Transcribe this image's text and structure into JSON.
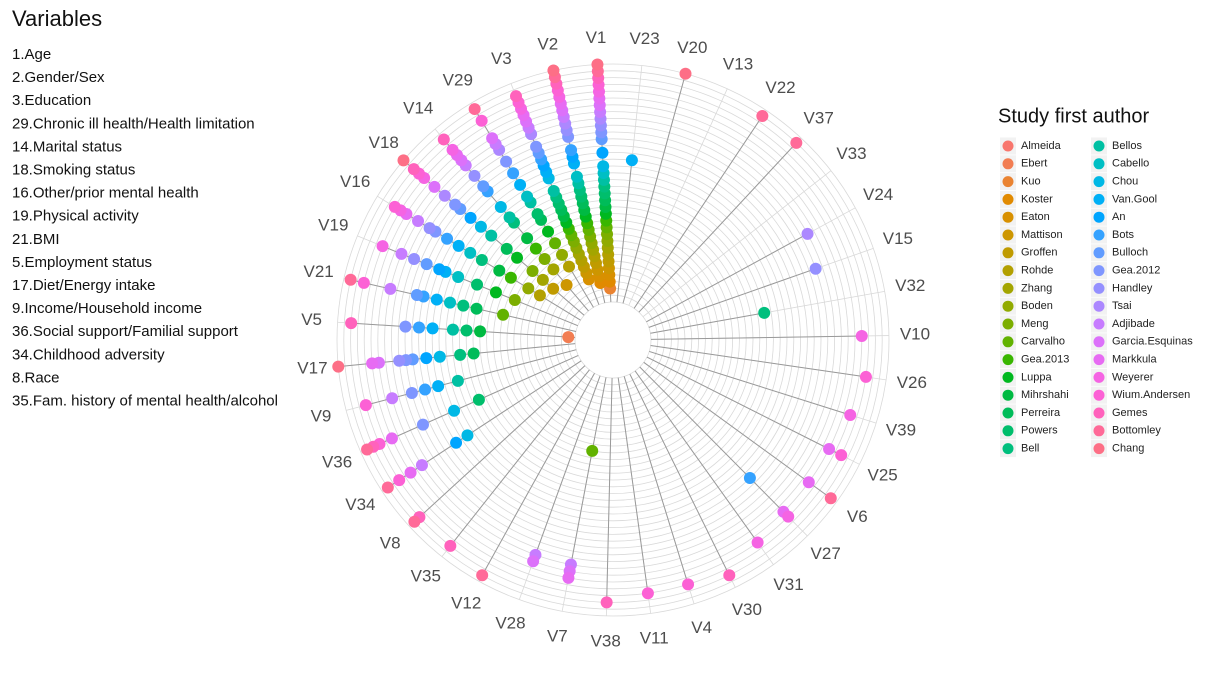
{
  "variables": {
    "title": "Variables",
    "items": [
      "1.Age",
      "2.Gender/Sex",
      "3.Education",
      "29.Chronic ill health/Health limitation",
      "14.Marital status",
      "18.Smoking status",
      "16.Other/prior mental health",
      "19.Physical activity",
      "21.BMI",
      "5.Employment status",
      "17.Diet/Energy intake",
      "9.Income/Household income",
      "36.Social support/Familial support",
      "34.Childhood adversity",
      "8.Race",
      "35.Fam. history of mental health/alcohol"
    ]
  },
  "chart_data": {
    "type": "radial_dot",
    "legend_title": "Study first author",
    "legend": "right",
    "grid": true,
    "categories": [
      "V1",
      "V23",
      "V20",
      "V13",
      "V22",
      "V37",
      "V33",
      "V24",
      "V15",
      "V32",
      "V10",
      "V26",
      "V39",
      "V25",
      "V6",
      "V27",
      "V31",
      "V30",
      "V4",
      "V11",
      "V38",
      "V7",
      "V28",
      "V12",
      "V35",
      "V8",
      "V34",
      "V36",
      "V9",
      "V17",
      "V5",
      "V21",
      "V19",
      "V16",
      "V18",
      "V14",
      "V29",
      "V3",
      "V2"
    ],
    "values": [
      [
        3,
        4,
        5,
        6,
        7,
        8,
        9,
        10,
        11,
        12,
        13,
        14,
        15,
        16,
        17,
        18,
        19,
        20,
        21,
        23,
        25,
        26,
        27,
        28,
        29,
        30,
        31,
        32,
        33,
        34,
        35,
        36
      ],
      [
        22
      ],
      [
        36
      ],
      [],
      [
        35
      ],
      [
        35
      ],
      [],
      [
        28
      ],
      [
        27
      ],
      [
        18
      ],
      [
        32
      ],
      [
        33
      ],
      [
        32
      ],
      [
        31,
        33
      ],
      [
        31,
        35
      ],
      [
        24,
        31,
        32
      ],
      [
        32
      ],
      [
        34
      ],
      [
        33
      ],
      [
        33
      ],
      [
        34
      ],
      [
        12,
        29,
        30,
        31
      ],
      [
        29,
        30
      ],
      [
        35
      ],
      [
        34
      ],
      [
        34,
        35
      ],
      [
        21,
        23,
        29,
        31,
        33,
        35
      ],
      [
        17,
        21,
        26,
        31,
        33,
        34,
        35
      ],
      [
        19,
        22,
        24,
        26,
        29,
        33
      ],
      [
        16,
        18,
        21,
        23,
        25,
        26,
        27,
        30,
        31,
        36
      ],
      [
        2,
        15,
        17,
        19,
        22,
        24,
        26,
        34
      ],
      [
        12,
        16,
        18,
        20,
        22,
        24,
        25,
        29,
        33,
        35
      ],
      [
        11,
        14,
        17,
        20,
        22,
        23,
        25,
        27,
        29,
        32
      ],
      [
        8,
        10,
        13,
        15,
        18,
        20,
        22,
        24,
        26,
        27,
        29,
        31,
        32,
        33
      ],
      [
        7,
        9,
        11,
        14,
        16,
        19,
        21,
        23,
        25,
        26,
        28,
        30,
        32,
        33,
        34,
        36
      ],
      [
        6,
        9,
        11,
        13,
        15,
        18,
        19,
        21,
        24,
        25,
        27,
        29,
        30,
        31,
        32,
        34
      ],
      [
        8,
        10,
        12,
        14,
        16,
        17,
        19,
        20,
        22,
        24,
        26,
        28,
        29,
        30,
        33,
        35
      ],
      [
        5,
        6,
        7,
        8,
        9,
        10,
        11,
        12,
        13,
        14,
        15,
        16,
        17,
        18,
        19,
        21,
        22,
        23,
        24,
        25,
        26,
        28,
        29,
        30,
        31,
        32,
        33,
        34
      ],
      [
        4,
        5,
        6,
        7,
        8,
        9,
        10,
        11,
        12,
        13,
        14,
        15,
        16,
        17,
        18,
        19,
        20,
        22,
        23,
        24,
        26,
        27,
        28,
        29,
        30,
        31,
        32,
        33,
        34,
        35,
        36
      ]
    ],
    "series": [
      {
        "name": "Almeida",
        "color": "#F8766D"
      },
      {
        "name": "Ebert",
        "color": "#F27D52"
      },
      {
        "name": "Kuo",
        "color": "#EA8331"
      },
      {
        "name": "Koster",
        "color": "#E18A00"
      },
      {
        "name": "Eaton",
        "color": "#D89000"
      },
      {
        "name": "Mattison",
        "color": "#CD9600"
      },
      {
        "name": "Groffen",
        "color": "#C09B00"
      },
      {
        "name": "Rohde",
        "color": "#B3A000"
      },
      {
        "name": "Zhang",
        "color": "#A3A500"
      },
      {
        "name": "Boden",
        "color": "#91AA00"
      },
      {
        "name": "Meng",
        "color": "#7CAE00"
      },
      {
        "name": "Carvalho",
        "color": "#62B200"
      },
      {
        "name": "Gea.2013",
        "color": "#39B600"
      },
      {
        "name": "Luppa",
        "color": "#00B81F"
      },
      {
        "name": "Mihrshahi",
        "color": "#00BA42"
      },
      {
        "name": "Perreira",
        "color": "#00BC59"
      },
      {
        "name": "Powers",
        "color": "#00BE6C"
      },
      {
        "name": "Bell",
        "color": "#00BF7D"
      },
      {
        "name": "Bellos",
        "color": "#00C0A3"
      },
      {
        "name": "Cabello",
        "color": "#00BFC4"
      },
      {
        "name": "Chou",
        "color": "#00B8E5"
      },
      {
        "name": "Van.Gool",
        "color": "#00B0F6"
      },
      {
        "name": "An",
        "color": "#00A5FF"
      },
      {
        "name": "Bots",
        "color": "#35A2FF"
      },
      {
        "name": "Bulloch",
        "color": "#619CFF"
      },
      {
        "name": "Gea.2012",
        "color": "#7F96FF"
      },
      {
        "name": "Handley",
        "color": "#9590FF"
      },
      {
        "name": "Tsai",
        "color": "#AC88FF"
      },
      {
        "name": "Adjibade",
        "color": "#C77CFF"
      },
      {
        "name": "Garcia.Esquinas",
        "color": "#DC71FA"
      },
      {
        "name": "Markkula",
        "color": "#E76BF3"
      },
      {
        "name": "Weyerer",
        "color": "#F564E3"
      },
      {
        "name": "Wium.Andersen",
        "color": "#FC61D5"
      },
      {
        "name": "Gemes",
        "color": "#FF62BC"
      },
      {
        "name": "Bottomley",
        "color": "#FF6A98"
      },
      {
        "name": "Chang",
        "color": "#FD6F86"
      }
    ]
  }
}
